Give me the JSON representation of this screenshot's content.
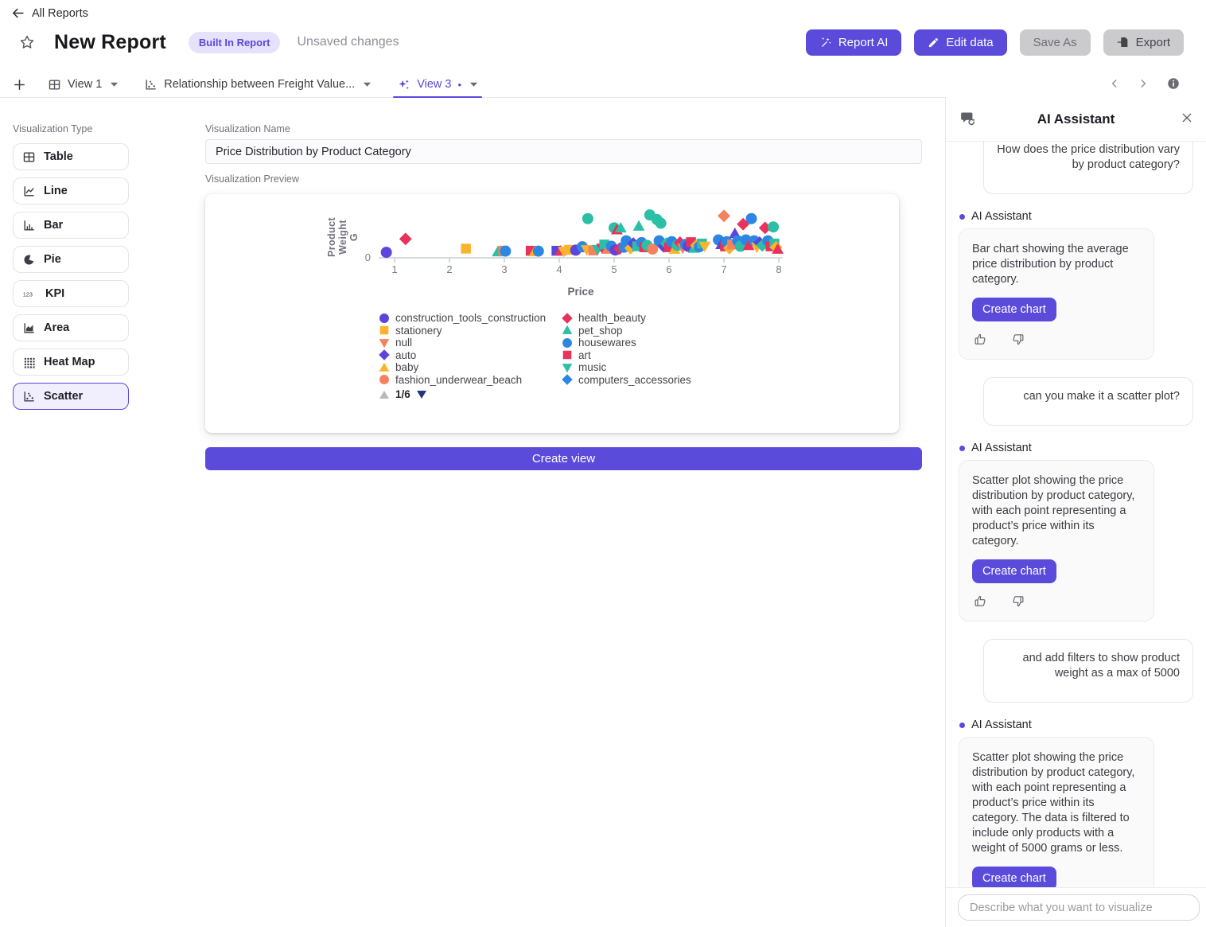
{
  "header": {
    "back_label": "All Reports",
    "title": "New Report",
    "badge": "Built In Report",
    "status": "Unsaved changes",
    "buttons": {
      "report_ai": "Report AI",
      "edit_data": "Edit data",
      "save_as": "Save As",
      "export": "Export"
    }
  },
  "tabs": [
    {
      "label": "View 1",
      "icon": "table-icon",
      "active": false
    },
    {
      "label": "Relationship between Freight Value...",
      "icon": "scatter-icon",
      "active": false
    },
    {
      "label": "View 3",
      "icon": "sparkles-icon",
      "active": true,
      "unsaved_dot": "•"
    }
  ],
  "sidebar": {
    "label": "Visualization Type",
    "items": [
      {
        "label": "Table",
        "icon": "table-icon",
        "selected": false
      },
      {
        "label": "Line",
        "icon": "line-chart-icon",
        "selected": false
      },
      {
        "label": "Bar",
        "icon": "bar-chart-icon",
        "selected": false
      },
      {
        "label": "Pie",
        "icon": "pie-chart-icon",
        "selected": false
      },
      {
        "label": "KPI",
        "icon": "kpi-icon",
        "selected": false
      },
      {
        "label": "Area",
        "icon": "area-chart-icon",
        "selected": false
      },
      {
        "label": "Heat Map",
        "icon": "heatmap-icon",
        "selected": false
      },
      {
        "label": "Scatter",
        "icon": "scatter-icon",
        "selected": true
      }
    ]
  },
  "main": {
    "name_label": "Visualization Name",
    "name_value": "Price Distribution by Product Category",
    "preview_label": "Visualization Preview",
    "create_view_label": "Create view"
  },
  "chart_data": {
    "type": "scatter",
    "title": "Price Distribution by Product Category",
    "xlabel": "Price",
    "ylabel": "Product Weight G",
    "xlim": [
      0.8,
      8.2
    ],
    "ylim": [
      0,
      5000
    ],
    "x_ticks": [
      1,
      2,
      3,
      4,
      5,
      6,
      7,
      8
    ],
    "y_ticks": [
      0
    ],
    "grid": false,
    "legend_position": "bottom",
    "legend_page": "1/6",
    "palette": {
      "P": "#5b45db",
      "A": "#fbb32c",
      "S": "#f5825d",
      "C": "#e8315b",
      "T": "#2cbfa7",
      "B": "#2d87e2"
    },
    "shape_names": {
      "c": "circle",
      "q": "square",
      "d": "diamond",
      "t": "triangle-up",
      "v": "triangle-down"
    },
    "legend": [
      {
        "label": "construction_tools_construction",
        "color": "P",
        "shape": "c"
      },
      {
        "label": "stationery",
        "color": "A",
        "shape": "q"
      },
      {
        "label": "null",
        "color": "S",
        "shape": "v"
      },
      {
        "label": "auto",
        "color": "P",
        "shape": "d"
      },
      {
        "label": "baby",
        "color": "A",
        "shape": "t"
      },
      {
        "label": "fashion_underwear_beach",
        "color": "S",
        "shape": "c"
      },
      {
        "label": "health_beauty",
        "color": "C",
        "shape": "d"
      },
      {
        "label": "pet_shop",
        "color": "T",
        "shape": "t"
      },
      {
        "label": "housewares",
        "color": "B",
        "shape": "c"
      },
      {
        "label": "art",
        "color": "C",
        "shape": "q"
      },
      {
        "label": "music",
        "color": "T",
        "shape": "v"
      },
      {
        "label": "computers_accessories",
        "color": "B",
        "shape": "d"
      }
    ],
    "points": [
      [
        0.85,
        250,
        "P",
        "c"
      ],
      [
        1.2,
        1700,
        "C",
        "d"
      ],
      [
        2.3,
        650,
        "A",
        "q"
      ],
      [
        2.88,
        320,
        "T",
        "t"
      ],
      [
        2.98,
        430,
        "S",
        "q"
      ],
      [
        3.02,
        380,
        "B",
        "c"
      ],
      [
        3.48,
        420,
        "C",
        "q"
      ],
      [
        3.55,
        320,
        "A",
        "t"
      ],
      [
        3.62,
        380,
        "B",
        "c"
      ],
      [
        3.95,
        420,
        "P",
        "q"
      ],
      [
        4.02,
        400,
        "C",
        "t"
      ],
      [
        4.08,
        350,
        "A",
        "v"
      ],
      [
        4.18,
        520,
        "A",
        "q"
      ],
      [
        4.3,
        480,
        "P",
        "c"
      ],
      [
        4.42,
        850,
        "B",
        "c"
      ],
      [
        4.5,
        520,
        "A",
        "v"
      ],
      [
        4.52,
        3900,
        "T",
        "c"
      ],
      [
        4.62,
        450,
        "S",
        "q"
      ],
      [
        4.7,
        550,
        "T",
        "v"
      ],
      [
        4.78,
        700,
        "C",
        "v"
      ],
      [
        4.82,
        1100,
        "T",
        "q"
      ],
      [
        4.88,
        600,
        "S",
        "t"
      ],
      [
        4.95,
        900,
        "B",
        "c"
      ],
      [
        5.0,
        2900,
        "T",
        "c"
      ],
      [
        5.05,
        2700,
        "C",
        "t"
      ],
      [
        5.12,
        2900,
        "T",
        "t"
      ],
      [
        5.02,
        500,
        "P",
        "c"
      ],
      [
        5.1,
        650,
        "C",
        "d"
      ],
      [
        5.18,
        800,
        "B",
        "c"
      ],
      [
        5.22,
        1500,
        "B",
        "c"
      ],
      [
        5.3,
        700,
        "A",
        "d"
      ],
      [
        5.35,
        1200,
        "P",
        "d"
      ],
      [
        5.42,
        900,
        "T",
        "q"
      ],
      [
        5.45,
        3100,
        "T",
        "t"
      ],
      [
        5.5,
        1300,
        "B",
        "c"
      ],
      [
        5.55,
        800,
        "C",
        "q"
      ],
      [
        5.6,
        1000,
        "T",
        "c"
      ],
      [
        5.65,
        4300,
        "T",
        "c"
      ],
      [
        5.7,
        600,
        "S",
        "c"
      ],
      [
        5.78,
        3800,
        "T",
        "c"
      ],
      [
        5.85,
        3400,
        "T",
        "c"
      ],
      [
        5.82,
        1500,
        "B",
        "c"
      ],
      [
        5.9,
        900,
        "P",
        "d"
      ],
      [
        5.95,
        1200,
        "T",
        "d"
      ],
      [
        6.0,
        800,
        "C",
        "q"
      ],
      [
        6.05,
        1400,
        "B",
        "c"
      ],
      [
        6.1,
        600,
        "A",
        "t"
      ],
      [
        6.15,
        1000,
        "T",
        "c"
      ],
      [
        6.2,
        1300,
        "C",
        "d"
      ],
      [
        6.25,
        700,
        "S",
        "v"
      ],
      [
        6.3,
        1100,
        "B",
        "c"
      ],
      [
        6.35,
        900,
        "P",
        "c"
      ],
      [
        6.4,
        1350,
        "C",
        "q"
      ],
      [
        6.45,
        700,
        "T",
        "t"
      ],
      [
        6.5,
        1000,
        "A",
        "d"
      ],
      [
        6.55,
        850,
        "B",
        "c"
      ],
      [
        6.6,
        1200,
        "T",
        "q"
      ],
      [
        6.65,
        900,
        "A",
        "v"
      ],
      [
        6.9,
        1600,
        "B",
        "c"
      ],
      [
        6.95,
        1100,
        "P",
        "t"
      ],
      [
        7.0,
        4200,
        "S",
        "d"
      ],
      [
        7.02,
        900,
        "C",
        "q"
      ],
      [
        7.05,
        1400,
        "B",
        "c"
      ],
      [
        7.1,
        700,
        "A",
        "d"
      ],
      [
        7.15,
        1100,
        "S",
        "q"
      ],
      [
        7.2,
        2300,
        "P",
        "t"
      ],
      [
        7.25,
        1500,
        "B",
        "c"
      ],
      [
        7.3,
        900,
        "T",
        "c"
      ],
      [
        7.35,
        3300,
        "C",
        "d"
      ],
      [
        7.4,
        1600,
        "B",
        "c"
      ],
      [
        7.45,
        1000,
        "C",
        "t"
      ],
      [
        7.5,
        3900,
        "B",
        "c"
      ],
      [
        7.55,
        1500,
        "B",
        "c"
      ],
      [
        7.6,
        800,
        "A",
        "v"
      ],
      [
        7.65,
        1300,
        "P",
        "d"
      ],
      [
        7.7,
        1000,
        "T",
        "d"
      ],
      [
        7.75,
        2900,
        "C",
        "d"
      ],
      [
        7.8,
        1500,
        "B",
        "c"
      ],
      [
        7.85,
        900,
        "C",
        "q"
      ],
      [
        7.9,
        3000,
        "T",
        "c"
      ],
      [
        7.92,
        1200,
        "T",
        "q"
      ],
      [
        7.95,
        800,
        "A",
        "d"
      ],
      [
        7.98,
        600,
        "C",
        "t"
      ]
    ]
  },
  "assistant": {
    "title": "AI Assistant",
    "sender_label": "AI Assistant",
    "input_placeholder": "Describe what you want to visualize",
    "messages": [
      {
        "role": "user",
        "text": "How does the price distribution vary by product category?",
        "clipped": true
      },
      {
        "role": "assistant",
        "text": "Bar chart showing the average price distribution by product category.",
        "action": "Create chart"
      },
      {
        "role": "user",
        "text": "can you make it a scatter plot?",
        "clipped": false
      },
      {
        "role": "assistant",
        "text": "Scatter plot showing the price distribution by product category, with each point representing a product’s price within its category.",
        "action": "Create chart"
      },
      {
        "role": "user",
        "text": "and add filters to show product weight as a max of 5000",
        "clipped": false
      },
      {
        "role": "assistant",
        "text": "Scatter plot showing the price distribution by product category, with each point representing a product’s price within its category. The data is filtered to include only products with a weight of 5000 grams or less.",
        "action": "Create chart"
      }
    ]
  }
}
